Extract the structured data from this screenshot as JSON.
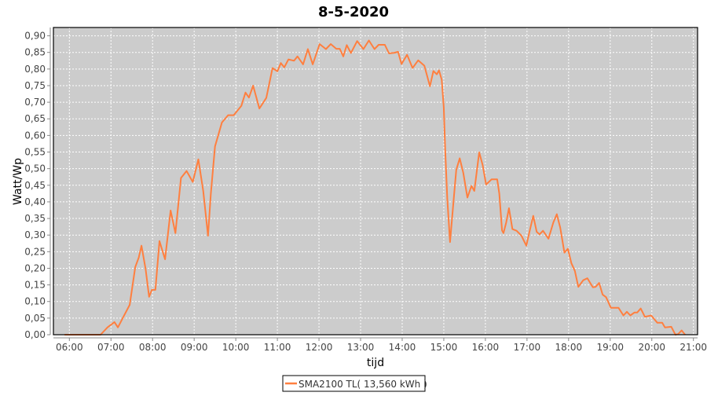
{
  "chart_data": {
    "type": "line",
    "title": "8-5-2020",
    "xlabel": "tijd",
    "ylabel": "Watt/Wp",
    "xlim": [
      "05:37",
      "21:06"
    ],
    "ylim": [
      0,
      0.925
    ],
    "grid": true,
    "background": "#cccccc",
    "legend_placement": "bottom",
    "x_ticks": [
      "06:00",
      "07:00",
      "08:00",
      "09:00",
      "10:00",
      "11:00",
      "12:00",
      "13:00",
      "14:00",
      "15:00",
      "16:00",
      "17:00",
      "18:00",
      "19:00",
      "20:00",
      "21:00"
    ],
    "y_ticks": [
      "0,00",
      "0,05",
      "0,10",
      "0,15",
      "0,20",
      "0,25",
      "0,30",
      "0,35",
      "0,40",
      "0,45",
      "0,50",
      "0,55",
      "0,60",
      "0,65",
      "0,70",
      "0,75",
      "0,80",
      "0,85",
      "0,90"
    ],
    "series": [
      {
        "name": "SMA2100 TL( 13,560 kWh )",
        "color": "#ff7f3f",
        "points": [
          [
            "05:53",
            0
          ],
          [
            "06:45",
            0
          ],
          [
            "06:55",
            0.022
          ],
          [
            "07:05",
            0.038
          ],
          [
            "07:10",
            0.022
          ],
          [
            "07:18",
            0.054
          ],
          [
            "07:27",
            0.09
          ],
          [
            "07:35",
            0.204
          ],
          [
            "07:40",
            0.232
          ],
          [
            "07:44",
            0.268
          ],
          [
            "07:50",
            0.197
          ],
          [
            "07:55",
            0.114
          ],
          [
            "07:59",
            0.135
          ],
          [
            "08:04",
            0.135
          ],
          [
            "08:10",
            0.282
          ],
          [
            "08:18",
            0.227
          ],
          [
            "08:26",
            0.374
          ],
          [
            "08:33",
            0.306
          ],
          [
            "08:41",
            0.472
          ],
          [
            "08:49",
            0.493
          ],
          [
            "08:58",
            0.46
          ],
          [
            "09:06",
            0.528
          ],
          [
            "09:13",
            0.433
          ],
          [
            "09:20",
            0.298
          ],
          [
            "09:24",
            0.425
          ],
          [
            "09:30",
            0.567
          ],
          [
            "09:40",
            0.639
          ],
          [
            "09:49",
            0.661
          ],
          [
            "09:57",
            0.661
          ],
          [
            "10:08",
            0.689
          ],
          [
            "10:14",
            0.729
          ],
          [
            "10:19",
            0.714
          ],
          [
            "10:25",
            0.75
          ],
          [
            "10:34",
            0.681
          ],
          [
            "10:44",
            0.713
          ],
          [
            "10:53",
            0.803
          ],
          [
            "11:00",
            0.793
          ],
          [
            "11:05",
            0.818
          ],
          [
            "11:10",
            0.805
          ],
          [
            "11:16",
            0.829
          ],
          [
            "11:24",
            0.825
          ],
          [
            "11:29",
            0.838
          ],
          [
            "11:37",
            0.814
          ],
          [
            "11:44",
            0.86
          ],
          [
            "11:51",
            0.814
          ],
          [
            "12:01",
            0.875
          ],
          [
            "12:10",
            0.86
          ],
          [
            "12:17",
            0.875
          ],
          [
            "12:25",
            0.861
          ],
          [
            "12:30",
            0.861
          ],
          [
            "12:35",
            0.838
          ],
          [
            "12:40",
            0.872
          ],
          [
            "12:46",
            0.848
          ],
          [
            "12:55",
            0.884
          ],
          [
            "13:04",
            0.86
          ],
          [
            "13:12",
            0.886
          ],
          [
            "13:20",
            0.86
          ],
          [
            "13:26",
            0.873
          ],
          [
            "13:35",
            0.873
          ],
          [
            "13:41",
            0.847
          ],
          [
            "13:49",
            0.849
          ],
          [
            "13:54",
            0.852
          ],
          [
            "13:59",
            0.815
          ],
          [
            "14:07",
            0.843
          ],
          [
            "14:15",
            0.803
          ],
          [
            "14:23",
            0.826
          ],
          [
            "14:32",
            0.81
          ],
          [
            "14:40",
            0.748
          ],
          [
            "14:45",
            0.794
          ],
          [
            "14:50",
            0.784
          ],
          [
            "14:53",
            0.796
          ],
          [
            "14:57",
            0.768
          ],
          [
            "15:00",
            0.685
          ],
          [
            "15:02",
            0.559
          ],
          [
            "15:05",
            0.409
          ],
          [
            "15:09",
            0.279
          ],
          [
            "15:14",
            0.401
          ],
          [
            "15:18",
            0.496
          ],
          [
            "15:23",
            0.531
          ],
          [
            "15:28",
            0.488
          ],
          [
            "15:34",
            0.413
          ],
          [
            "15:40",
            0.448
          ],
          [
            "15:44",
            0.433
          ],
          [
            "15:51",
            0.549
          ],
          [
            "15:56",
            0.511
          ],
          [
            "16:01",
            0.452
          ],
          [
            "16:09",
            0.468
          ],
          [
            "16:17",
            0.468
          ],
          [
            "16:20",
            0.425
          ],
          [
            "16:24",
            0.314
          ],
          [
            "16:26",
            0.306
          ],
          [
            "16:30",
            0.338
          ],
          [
            "16:34",
            0.381
          ],
          [
            "16:39",
            0.318
          ],
          [
            "16:45",
            0.313
          ],
          [
            "16:52",
            0.298
          ],
          [
            "16:59",
            0.268
          ],
          [
            "17:04",
            0.314
          ],
          [
            "17:09",
            0.358
          ],
          [
            "17:14",
            0.31
          ],
          [
            "17:18",
            0.302
          ],
          [
            "17:23",
            0.313
          ],
          [
            "17:31",
            0.289
          ],
          [
            "17:38",
            0.338
          ],
          [
            "17:43",
            0.363
          ],
          [
            "17:48",
            0.322
          ],
          [
            "17:54",
            0.247
          ],
          [
            "17:59",
            0.259
          ],
          [
            "18:04",
            0.215
          ],
          [
            "18:09",
            0.192
          ],
          [
            "18:14",
            0.144
          ],
          [
            "18:21",
            0.164
          ],
          [
            "18:27",
            0.17
          ],
          [
            "18:35",
            0.143
          ],
          [
            "18:39",
            0.144
          ],
          [
            "18:44",
            0.156
          ],
          [
            "18:49",
            0.121
          ],
          [
            "18:54",
            0.113
          ],
          [
            "19:01",
            0.081
          ],
          [
            "19:12",
            0.081
          ],
          [
            "19:19",
            0.058
          ],
          [
            "19:24",
            0.069
          ],
          [
            "19:29",
            0.058
          ],
          [
            "19:35",
            0.067
          ],
          [
            "19:39",
            0.067
          ],
          [
            "19:44",
            0.079
          ],
          [
            "19:50",
            0.054
          ],
          [
            "19:59",
            0.058
          ],
          [
            "20:08",
            0.036
          ],
          [
            "20:15",
            0.036
          ],
          [
            "20:19",
            0.022
          ],
          [
            "20:28",
            0.024
          ],
          [
            "20:34",
            0
          ],
          [
            "20:38",
            0.002
          ],
          [
            "20:43",
            0.013
          ],
          [
            "20:48",
            0
          ]
        ]
      }
    ]
  }
}
